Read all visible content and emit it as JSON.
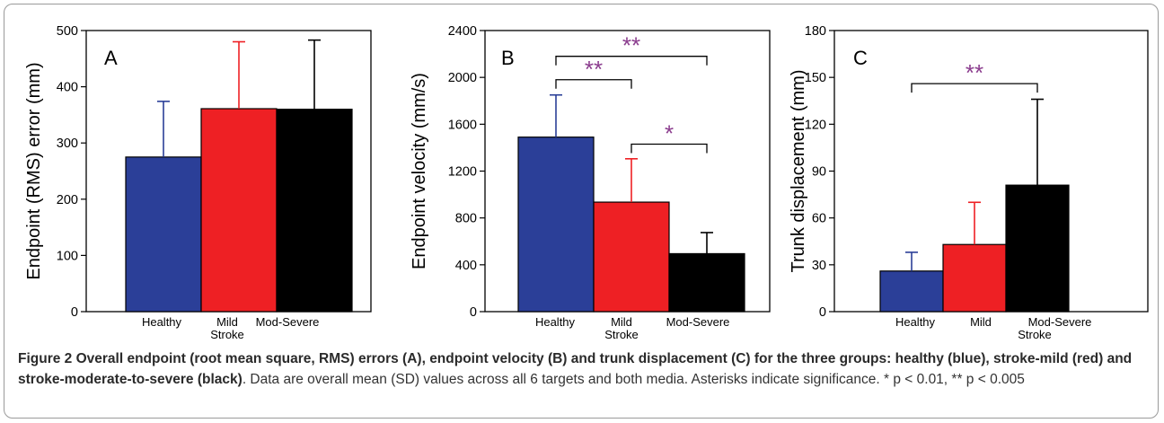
{
  "chart_data": [
    {
      "type": "bar",
      "panel_letter": "A",
      "ylabel": "Endpoint (RMS) error (mm)",
      "ylim": [
        0,
        500
      ],
      "yticks": [
        0,
        100,
        200,
        300,
        400,
        500
      ],
      "categories": [
        "Healthy",
        "Mild",
        "Mod-Severe"
      ],
      "group_label": "Stroke",
      "values": [
        275,
        361,
        360
      ],
      "sd": [
        99,
        119,
        123
      ],
      "colors": [
        "#2b3f98",
        "#ee2024",
        "#000000"
      ],
      "significance": []
    },
    {
      "type": "bar",
      "panel_letter": "B",
      "ylabel": "Endpoint velocity (mm/s)",
      "ylim": [
        0,
        2400
      ],
      "yticks": [
        0,
        400,
        800,
        1200,
        1600,
        2000,
        2400
      ],
      "categories": [
        "Healthy",
        "Mild",
        "Mod-Severe"
      ],
      "group_label": "Stroke",
      "values": [
        1490,
        935,
        495
      ],
      "sd": [
        360,
        370,
        180
      ],
      "colors": [
        "#2b3f98",
        "#ee2024",
        "#000000"
      ],
      "significance": [
        {
          "from": 0,
          "to": 2,
          "y": 2180,
          "label": "**"
        },
        {
          "from": 0,
          "to": 1,
          "y": 1980,
          "label": "**"
        },
        {
          "from": 1,
          "to": 2,
          "y": 1430,
          "label": "*"
        }
      ]
    },
    {
      "type": "bar",
      "panel_letter": "C",
      "ylabel": "Trunk displacement (mm)",
      "ylim": [
        0,
        180
      ],
      "yticks": [
        0,
        30,
        60,
        90,
        120,
        150,
        180
      ],
      "categories": [
        "Healthy",
        "Mild",
        "Mod-Severe"
      ],
      "group_label": "Stroke",
      "values": [
        26,
        43,
        81
      ],
      "sd": [
        12,
        27,
        55
      ],
      "colors": [
        "#2b3f98",
        "#ee2024",
        "#000000"
      ],
      "significance": [
        {
          "from": 0,
          "to": 2,
          "y": 146,
          "label": "**"
        }
      ]
    }
  ],
  "caption": {
    "bold": "Figure 2 Overall endpoint (root mean square, RMS) errors (A), endpoint velocity (B) and trunk displacement (C) for the three groups: healthy (blue), stroke-mild (red) and stroke-moderate-to-severe (black)",
    "rest": ". Data are overall mean (SD) values across all 6 targets and both media. Asterisks indicate significance. * p < 0.01, ** p < 0.005"
  },
  "sig_color": "#8b3d8e"
}
